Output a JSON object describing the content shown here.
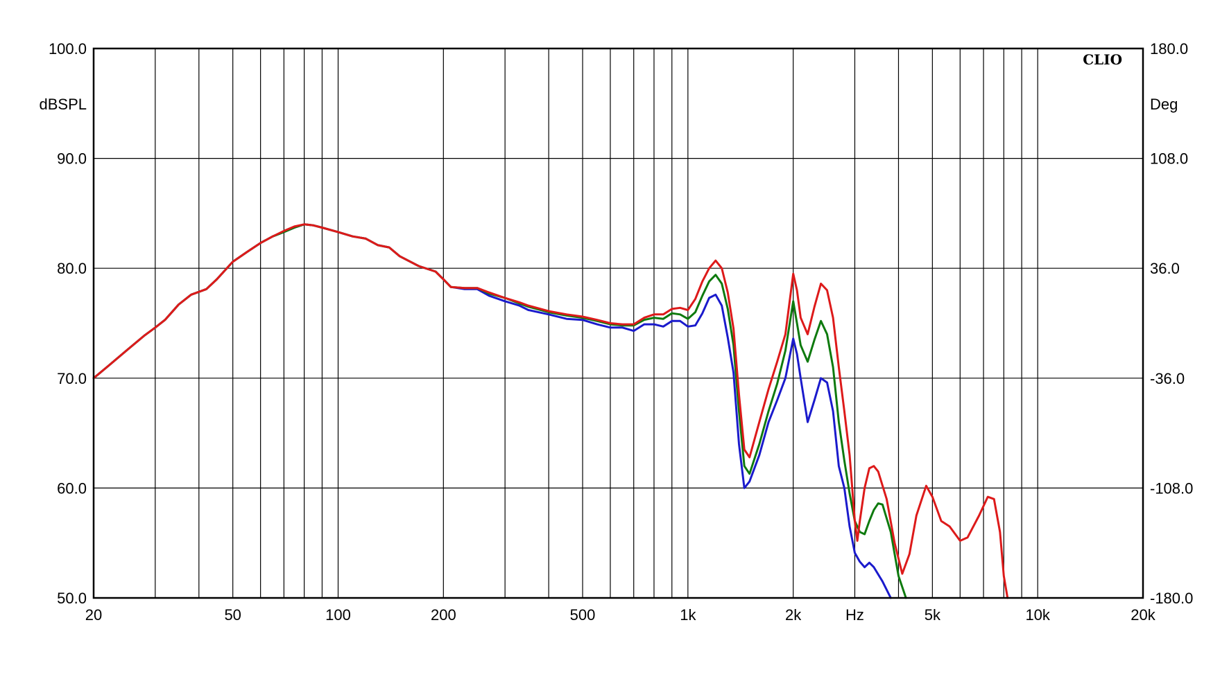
{
  "chart_data": {
    "type": "line",
    "brand": "CLIO",
    "x_scale": "log",
    "xlim": [
      20,
      20000
    ],
    "x_ticks": [
      {
        "value": 20,
        "label": "20"
      },
      {
        "value": 50,
        "label": "50"
      },
      {
        "value": 100,
        "label": "100"
      },
      {
        "value": 200,
        "label": "200"
      },
      {
        "value": 500,
        "label": "500"
      },
      {
        "value": 1000,
        "label": "1k"
      },
      {
        "value": 2000,
        "label": "2k"
      },
      {
        "value": 3000,
        "label": "Hz"
      },
      {
        "value": 5000,
        "label": "5k"
      },
      {
        "value": 10000,
        "label": "10k"
      },
      {
        "value": 20000,
        "label": "20k"
      }
    ],
    "y_left": {
      "unit": "dBSPL",
      "ylim": [
        50,
        100
      ],
      "ticks": [
        {
          "value": 100,
          "label": "100.0"
        },
        {
          "value": 90,
          "label": "90.0"
        },
        {
          "value": 80,
          "label": "80.0"
        },
        {
          "value": 70,
          "label": "70.0"
        },
        {
          "value": 60,
          "label": "60.0"
        },
        {
          "value": 50,
          "label": "50.0"
        }
      ]
    },
    "y_right": {
      "unit": "Deg",
      "ylim": [
        -180,
        180
      ],
      "ticks": [
        {
          "value": 180,
          "label": "180.0"
        },
        {
          "value": 108,
          "label": "108.0"
        },
        {
          "value": 36,
          "label": "36.0"
        },
        {
          "value": -36,
          "label": "-36.0"
        },
        {
          "value": -108,
          "label": "-108.0"
        },
        {
          "value": -180,
          "label": "-180.0"
        }
      ]
    },
    "grid": true,
    "legend": "none",
    "series": [
      {
        "color": "#1a1acc",
        "points": [
          [
            20,
            70
          ],
          [
            22,
            71.1
          ],
          [
            25,
            72.6
          ],
          [
            28,
            73.9
          ],
          [
            30,
            74.6
          ],
          [
            32,
            75.3
          ],
          [
            35,
            76.7
          ],
          [
            38,
            77.6
          ],
          [
            42,
            78.1
          ],
          [
            45,
            79.0
          ],
          [
            50,
            80.6
          ],
          [
            55,
            81.5
          ],
          [
            60,
            82.3
          ],
          [
            65,
            82.9
          ],
          [
            70,
            83.3
          ],
          [
            75,
            83.7
          ],
          [
            80,
            84.0
          ],
          [
            85,
            83.9
          ],
          [
            90,
            83.7
          ],
          [
            100,
            83.3
          ],
          [
            110,
            82.9
          ],
          [
            120,
            82.7
          ],
          [
            130,
            82.1
          ],
          [
            140,
            81.9
          ],
          [
            150,
            81.1
          ],
          [
            170,
            80.2
          ],
          [
            190,
            79.7
          ],
          [
            200,
            79.0
          ],
          [
            210,
            78.3
          ],
          [
            230,
            78.1
          ],
          [
            250,
            78.1
          ],
          [
            270,
            77.5
          ],
          [
            300,
            77.0
          ],
          [
            330,
            76.6
          ],
          [
            350,
            76.2
          ],
          [
            400,
            75.8
          ],
          [
            450,
            75.4
          ],
          [
            500,
            75.3
          ],
          [
            550,
            74.9
          ],
          [
            600,
            74.6
          ],
          [
            650,
            74.6
          ],
          [
            700,
            74.3
          ],
          [
            750,
            74.9
          ],
          [
            800,
            74.9
          ],
          [
            850,
            74.7
          ],
          [
            900,
            75.2
          ],
          [
            950,
            75.2
          ],
          [
            1000,
            74.7
          ],
          [
            1050,
            74.8
          ],
          [
            1100,
            75.9
          ],
          [
            1150,
            77.3
          ],
          [
            1200,
            77.6
          ],
          [
            1250,
            76.6
          ],
          [
            1300,
            73.7
          ],
          [
            1350,
            70.5
          ],
          [
            1400,
            64.0
          ],
          [
            1450,
            60.0
          ],
          [
            1500,
            60.6
          ],
          [
            1600,
            63.0
          ],
          [
            1700,
            66.0
          ],
          [
            1800,
            68.0
          ],
          [
            1900,
            70.0
          ],
          [
            2000,
            73.6
          ],
          [
            2050,
            72.2
          ],
          [
            2100,
            70.0
          ],
          [
            2200,
            66.0
          ],
          [
            2300,
            68.0
          ],
          [
            2400,
            70.0
          ],
          [
            2500,
            69.6
          ],
          [
            2600,
            67.0
          ],
          [
            2700,
            62.0
          ],
          [
            2800,
            60.0
          ],
          [
            2900,
            56.5
          ],
          [
            3000,
            54.1
          ],
          [
            3100,
            53.3
          ],
          [
            3200,
            52.8
          ],
          [
            3300,
            53.2
          ],
          [
            3400,
            52.8
          ],
          [
            3600,
            51.5
          ],
          [
            3800,
            50.0
          ]
        ]
      },
      {
        "color": "#0e7a0e",
        "points": [
          [
            20,
            70
          ],
          [
            22,
            71.1
          ],
          [
            25,
            72.6
          ],
          [
            28,
            73.9
          ],
          [
            30,
            74.6
          ],
          [
            32,
            75.3
          ],
          [
            35,
            76.7
          ],
          [
            38,
            77.6
          ],
          [
            42,
            78.1
          ],
          [
            45,
            79.0
          ],
          [
            50,
            80.6
          ],
          [
            55,
            81.5
          ],
          [
            60,
            82.3
          ],
          [
            65,
            82.9
          ],
          [
            70,
            83.3
          ],
          [
            75,
            83.7
          ],
          [
            80,
            84.0
          ],
          [
            85,
            83.9
          ],
          [
            90,
            83.7
          ],
          [
            100,
            83.3
          ],
          [
            110,
            82.9
          ],
          [
            120,
            82.7
          ],
          [
            130,
            82.1
          ],
          [
            140,
            81.9
          ],
          [
            150,
            81.1
          ],
          [
            170,
            80.2
          ],
          [
            190,
            79.7
          ],
          [
            200,
            79.0
          ],
          [
            210,
            78.3
          ],
          [
            230,
            78.2
          ],
          [
            250,
            78.2
          ],
          [
            270,
            77.7
          ],
          [
            300,
            77.3
          ],
          [
            330,
            76.8
          ],
          [
            350,
            76.5
          ],
          [
            400,
            76.0
          ],
          [
            450,
            75.7
          ],
          [
            500,
            75.5
          ],
          [
            550,
            75.2
          ],
          [
            600,
            74.9
          ],
          [
            650,
            74.8
          ],
          [
            700,
            74.8
          ],
          [
            750,
            75.3
          ],
          [
            800,
            75.5
          ],
          [
            850,
            75.4
          ],
          [
            900,
            75.9
          ],
          [
            950,
            75.8
          ],
          [
            1000,
            75.4
          ],
          [
            1050,
            76.0
          ],
          [
            1100,
            77.5
          ],
          [
            1150,
            78.8
          ],
          [
            1200,
            79.4
          ],
          [
            1250,
            78.6
          ],
          [
            1300,
            76.3
          ],
          [
            1350,
            73.0
          ],
          [
            1400,
            67.0
          ],
          [
            1450,
            62.0
          ],
          [
            1500,
            61.3
          ],
          [
            1600,
            64.0
          ],
          [
            1700,
            67.0
          ],
          [
            1800,
            69.5
          ],
          [
            1900,
            72.5
          ],
          [
            2000,
            77.0
          ],
          [
            2050,
            75.0
          ],
          [
            2100,
            73.0
          ],
          [
            2200,
            71.5
          ],
          [
            2300,
            73.5
          ],
          [
            2400,
            75.2
          ],
          [
            2500,
            74.0
          ],
          [
            2600,
            71.0
          ],
          [
            2700,
            66.0
          ],
          [
            2800,
            62.5
          ],
          [
            2900,
            59.5
          ],
          [
            3000,
            57.0
          ],
          [
            3100,
            56.0
          ],
          [
            3200,
            55.8
          ],
          [
            3300,
            57.0
          ],
          [
            3400,
            58.0
          ],
          [
            3500,
            58.6
          ],
          [
            3600,
            58.5
          ],
          [
            3800,
            56.0
          ],
          [
            4000,
            52.0
          ],
          [
            4200,
            50.0
          ]
        ]
      },
      {
        "color": "#dd1a1a",
        "points": [
          [
            20,
            70
          ],
          [
            22,
            71.1
          ],
          [
            25,
            72.6
          ],
          [
            28,
            73.9
          ],
          [
            30,
            74.6
          ],
          [
            32,
            75.3
          ],
          [
            35,
            76.7
          ],
          [
            38,
            77.6
          ],
          [
            42,
            78.1
          ],
          [
            45,
            79.0
          ],
          [
            50,
            80.6
          ],
          [
            55,
            81.5
          ],
          [
            60,
            82.3
          ],
          [
            65,
            82.9
          ],
          [
            70,
            83.4
          ],
          [
            75,
            83.8
          ],
          [
            80,
            84.0
          ],
          [
            85,
            83.9
          ],
          [
            90,
            83.7
          ],
          [
            100,
            83.3
          ],
          [
            110,
            82.9
          ],
          [
            120,
            82.7
          ],
          [
            130,
            82.1
          ],
          [
            140,
            81.9
          ],
          [
            150,
            81.1
          ],
          [
            170,
            80.2
          ],
          [
            190,
            79.7
          ],
          [
            200,
            79.0
          ],
          [
            210,
            78.3
          ],
          [
            230,
            78.2
          ],
          [
            250,
            78.2
          ],
          [
            270,
            77.8
          ],
          [
            300,
            77.3
          ],
          [
            330,
            76.9
          ],
          [
            350,
            76.6
          ],
          [
            400,
            76.1
          ],
          [
            450,
            75.8
          ],
          [
            500,
            75.6
          ],
          [
            550,
            75.3
          ],
          [
            600,
            75.0
          ],
          [
            650,
            74.9
          ],
          [
            700,
            74.9
          ],
          [
            750,
            75.5
          ],
          [
            800,
            75.8
          ],
          [
            850,
            75.8
          ],
          [
            900,
            76.3
          ],
          [
            950,
            76.4
          ],
          [
            1000,
            76.2
          ],
          [
            1050,
            77.2
          ],
          [
            1100,
            78.8
          ],
          [
            1150,
            80.0
          ],
          [
            1200,
            80.7
          ],
          [
            1250,
            80.0
          ],
          [
            1300,
            77.8
          ],
          [
            1350,
            74.5
          ],
          [
            1400,
            68.5
          ],
          [
            1450,
            63.5
          ],
          [
            1500,
            62.8
          ],
          [
            1600,
            66.0
          ],
          [
            1700,
            69.0
          ],
          [
            1800,
            71.5
          ],
          [
            1900,
            74.0
          ],
          [
            2000,
            79.5
          ],
          [
            2050,
            78.0
          ],
          [
            2100,
            75.5
          ],
          [
            2200,
            74.0
          ],
          [
            2300,
            76.5
          ],
          [
            2400,
            78.6
          ],
          [
            2500,
            78.0
          ],
          [
            2600,
            75.5
          ],
          [
            2700,
            71.0
          ],
          [
            2800,
            67.0
          ],
          [
            2900,
            63.0
          ],
          [
            3000,
            57.0
          ],
          [
            3050,
            55.2
          ],
          [
            3100,
            57.0
          ],
          [
            3200,
            60.0
          ],
          [
            3300,
            61.8
          ],
          [
            3400,
            62.0
          ],
          [
            3500,
            61.5
          ],
          [
            3700,
            59.0
          ],
          [
            3900,
            55.0
          ],
          [
            4100,
            52.2
          ],
          [
            4300,
            54.0
          ],
          [
            4500,
            57.5
          ],
          [
            4800,
            60.2
          ],
          [
            5000,
            59.2
          ],
          [
            5300,
            57.0
          ],
          [
            5600,
            56.5
          ],
          [
            6000,
            55.2
          ],
          [
            6300,
            55.5
          ],
          [
            6800,
            57.5
          ],
          [
            7200,
            59.2
          ],
          [
            7500,
            59.0
          ],
          [
            7800,
            56.0
          ],
          [
            8000,
            52.0
          ],
          [
            8200,
            50.0
          ]
        ]
      }
    ]
  }
}
